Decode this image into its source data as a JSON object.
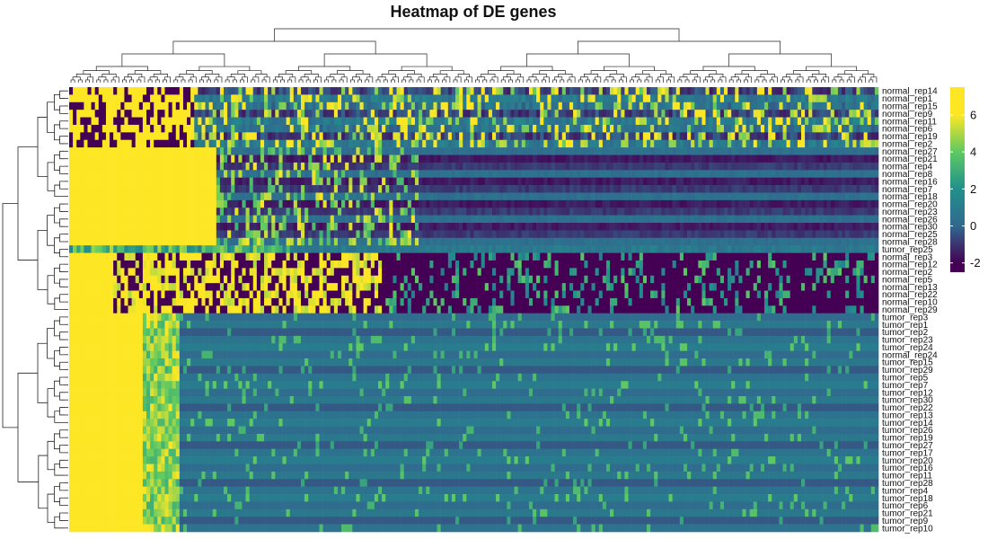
{
  "chart_data": {
    "type": "heatmap",
    "title": "Heatmap of DE genes",
    "rows": [
      "normal_rep14",
      "normal_rep1",
      "normal_rep15",
      "normal_rep9",
      "normal_rep11",
      "normal_rep6",
      "normal_rep19",
      "normal_rep2",
      "normal_rep27",
      "normal_rep21",
      "normal_rep4",
      "normal_rep8",
      "normal_rep16",
      "normal_rep7",
      "normal_rep18",
      "normal_rep20",
      "normal_rep23",
      "normal_rep26",
      "normal_rep30",
      "normal_rep25",
      "normal_rep28",
      "tumor_rep25",
      "normal_rep3",
      "normal_rep12",
      "normal_rep2",
      "normal_rep5",
      "normal_rep13",
      "normal_rep22",
      "normal_rep10",
      "normal_rep29",
      "tumor_rep3",
      "tumor_rep1",
      "tumor_rep2",
      "tumor_rep23",
      "tumor_rep24",
      "normal_rep24",
      "tumor_rep15",
      "tumor_rep29",
      "tumor_rep5",
      "tumor_rep7",
      "tumor_rep12",
      "tumor_rep30",
      "tumor_rep22",
      "tumor_rep13",
      "tumor_rep14",
      "tumor_rep26",
      "tumor_rep19",
      "tumor_rep27",
      "tumor_rep17",
      "tumor_rep20",
      "tumor_rep16",
      "tumor_rep11",
      "tumor_rep28",
      "tumor_rep4",
      "tumor_rep18",
      "tumor_rep6",
      "tumor_rep21",
      "tumor_rep9",
      "tumor_rep10"
    ],
    "n_columns": 220,
    "color_scale": {
      "stops": [
        -2,
        0,
        2,
        4,
        6
      ],
      "colors": [
        "#440154",
        "#31688e",
        "#21908c",
        "#5ec962",
        "#fde725"
      ]
    },
    "legend": {
      "placement": "right",
      "ticks": [
        "6",
        "4",
        "2",
        "0",
        "-2"
      ],
      "range": [
        -2.5,
        7.5
      ]
    },
    "row_dendrogram": true,
    "column_dendrogram": true
  }
}
